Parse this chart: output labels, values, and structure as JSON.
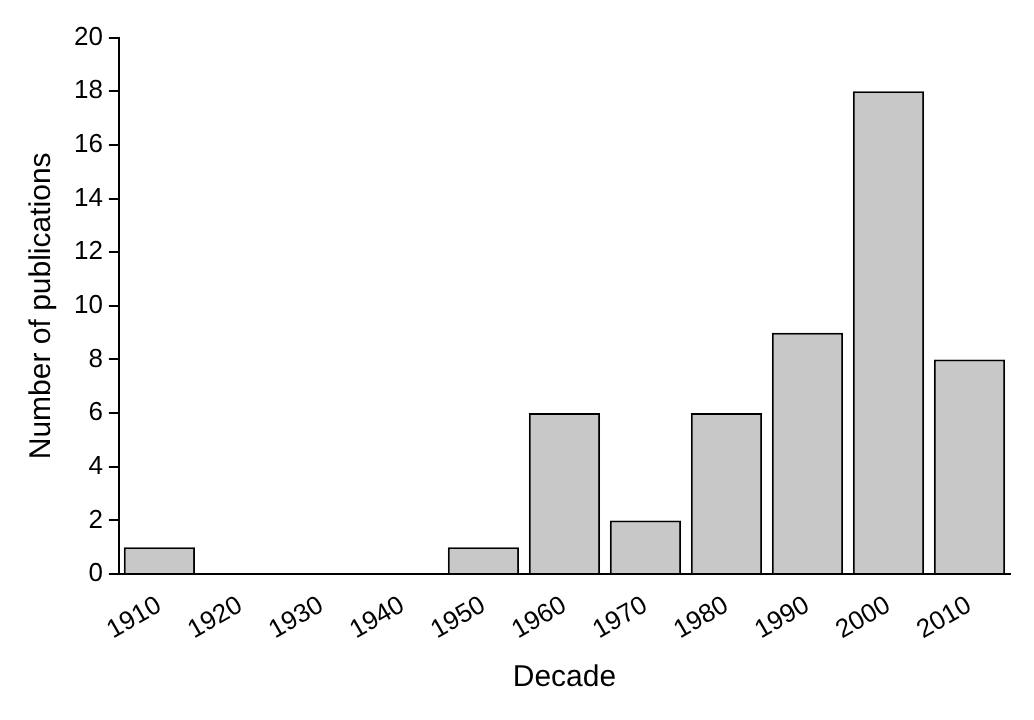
{
  "chart_data": {
    "type": "bar",
    "xlabel": "Decade",
    "ylabel": "Number of publications",
    "categories": [
      "1910",
      "1920",
      "1930",
      "1940",
      "1950",
      "1960",
      "1970",
      "1980",
      "1990",
      "2000",
      "2010"
    ],
    "values": [
      1,
      0,
      0,
      0,
      1,
      6,
      2,
      6,
      9,
      18,
      8
    ],
    "color": "#c8c8c8",
    "ylim": [
      0,
      20
    ],
    "yticks": [
      0,
      2,
      4,
      6,
      8,
      10,
      12,
      14,
      16,
      18,
      20
    ],
    "grid": false,
    "legend": false
  }
}
